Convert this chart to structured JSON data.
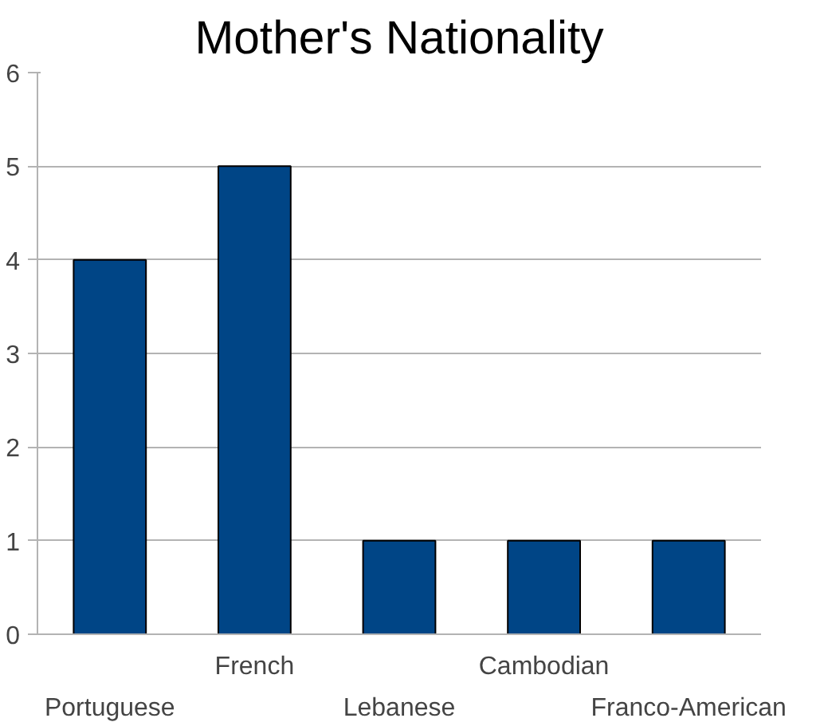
{
  "chart_data": {
    "type": "bar",
    "title": "Mother's Nationality",
    "categories": [
      "Portuguese",
      "French",
      "Lebanese",
      "Cambodian",
      "Franco-American"
    ],
    "values": [
      4,
      5,
      1,
      1,
      1
    ],
    "color": "#004586",
    "ylim": [
      0,
      6
    ],
    "yticks": [
      0,
      1,
      2,
      3,
      4,
      5,
      6
    ],
    "grid": "y"
  }
}
